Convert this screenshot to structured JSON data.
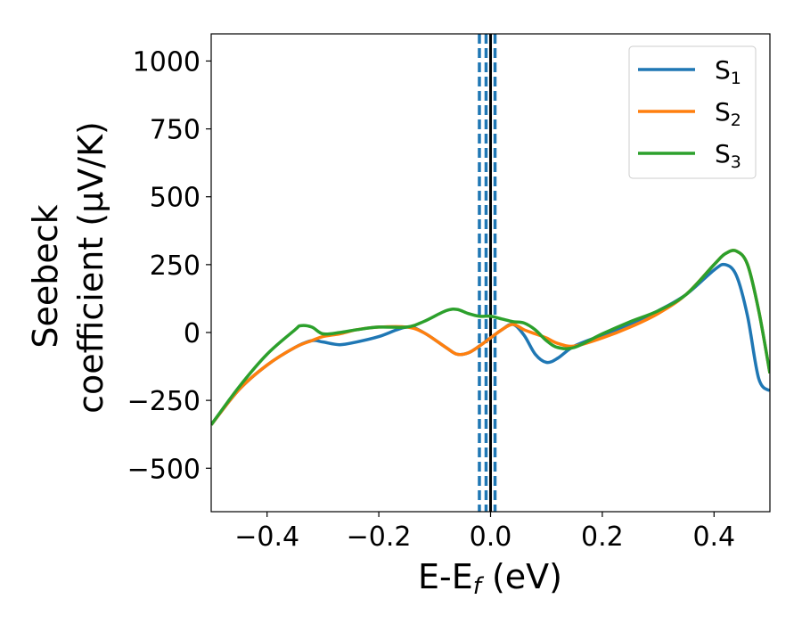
{
  "chart_data": {
    "type": "line",
    "xlabel": "E-E",
    "xlabel_sub": "f",
    "xlabel_unit": " (eV)",
    "ylabel_line1": "Seebeck",
    "ylabel_line2": "coefficient  (μV/K)",
    "xlim": [
      -0.5,
      0.5
    ],
    "ylim": [
      -660,
      1100
    ],
    "xticks": [
      -0.4,
      -0.2,
      0.0,
      0.2,
      0.4
    ],
    "xtick_labels": [
      "−0.4",
      "−0.2",
      "0.0",
      "0.2",
      "0.4"
    ],
    "yticks": [
      -500,
      -250,
      0,
      250,
      500,
      750,
      1000
    ],
    "ytick_labels": [
      "−500",
      "−250",
      "0",
      "250",
      "500",
      "750",
      "1000"
    ],
    "grid": false,
    "legend_position": "top-right",
    "series": [
      {
        "name": "S",
        "sub": "1",
        "color": "#1f77b4",
        "x": [
          -0.5,
          -0.45,
          -0.4,
          -0.35,
          -0.32,
          -0.3,
          -0.27,
          -0.24,
          -0.2,
          -0.15,
          -0.12,
          -0.08,
          -0.06,
          -0.04,
          -0.02,
          0.0,
          0.02,
          0.04,
          0.06,
          0.08,
          0.1,
          0.12,
          0.15,
          0.2,
          0.25,
          0.3,
          0.35,
          0.4,
          0.42,
          0.44,
          0.46,
          0.48,
          0.5
        ],
        "y": [
          -340,
          -210,
          -120,
          -55,
          -30,
          -35,
          -45,
          -35,
          -15,
          20,
          0,
          -55,
          -80,
          -75,
          -50,
          -20,
          10,
          30,
          -10,
          -80,
          -110,
          -95,
          -50,
          -10,
          30,
          80,
          140,
          230,
          250,
          210,
          60,
          -170,
          -215
        ]
      },
      {
        "name": "S",
        "sub": "2",
        "color": "#ff7f0e",
        "x": [
          -0.5,
          -0.45,
          -0.4,
          -0.35,
          -0.32,
          -0.3,
          -0.27,
          -0.24,
          -0.2,
          -0.15,
          -0.12,
          -0.08,
          -0.06,
          -0.04,
          -0.02,
          0.0,
          0.02,
          0.04,
          0.06,
          0.08,
          0.1,
          0.12,
          0.15,
          0.2,
          0.25,
          0.3,
          0.35,
          0.4,
          0.42,
          0.44,
          0.46,
          0.48,
          0.5
        ],
        "y": [
          -340,
          -210,
          -120,
          -55,
          -30,
          -15,
          -5,
          10,
          20,
          20,
          0,
          -55,
          -80,
          -75,
          -50,
          -20,
          10,
          30,
          10,
          -5,
          -20,
          -40,
          -50,
          -20,
          20,
          70,
          140,
          250,
          290,
          300,
          250,
          80,
          -150
        ]
      },
      {
        "name": "S",
        "sub": "3",
        "color": "#2ca02c",
        "x": [
          -0.5,
          -0.45,
          -0.4,
          -0.35,
          -0.34,
          -0.32,
          -0.3,
          -0.27,
          -0.24,
          -0.2,
          -0.15,
          -0.12,
          -0.08,
          -0.06,
          -0.04,
          -0.02,
          0.0,
          0.02,
          0.04,
          0.06,
          0.08,
          0.1,
          0.12,
          0.15,
          0.2,
          0.25,
          0.3,
          0.35,
          0.4,
          0.42,
          0.44,
          0.46,
          0.48,
          0.5
        ],
        "y": [
          -340,
          -200,
          -80,
          10,
          25,
          20,
          -5,
          0,
          10,
          20,
          20,
          40,
          80,
          85,
          70,
          60,
          60,
          50,
          40,
          35,
          10,
          -30,
          -55,
          -55,
          -5,
          40,
          80,
          140,
          250,
          290,
          300,
          250,
          80,
          -150
        ]
      }
    ],
    "vlines": [
      {
        "x": -0.02,
        "style": "dashed",
        "color": "#1f77b4"
      },
      {
        "x": -0.008,
        "style": "dashed",
        "color": "#1f77b4"
      },
      {
        "x": 0.008,
        "style": "dashed",
        "color": "#1f77b4"
      },
      {
        "x": 0.0,
        "style": "solid",
        "color": "#000000"
      }
    ]
  }
}
